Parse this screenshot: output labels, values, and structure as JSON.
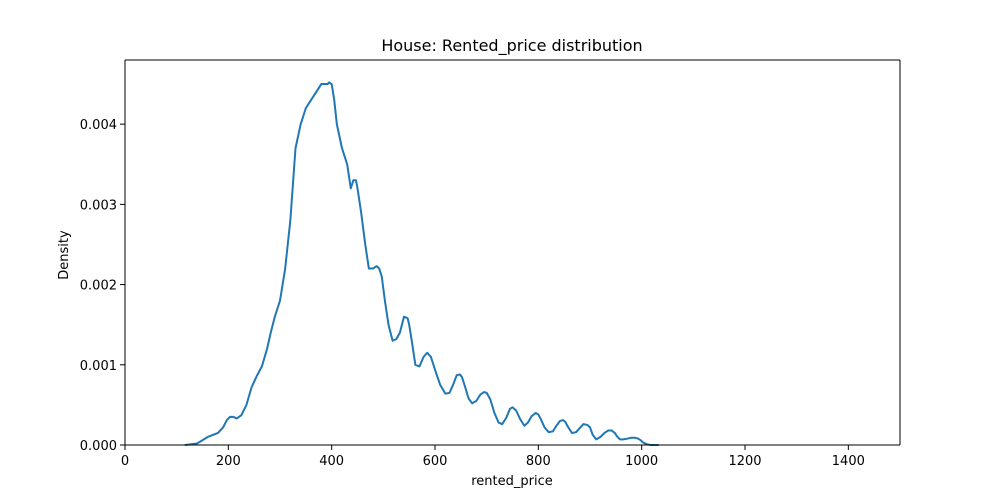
{
  "chart_data": {
    "type": "line",
    "title": "House: Rented_price distribution",
    "xlabel": "rented_price",
    "ylabel": "Density",
    "xlim": [
      0,
      1500
    ],
    "ylim": [
      0,
      0.0048
    ],
    "x_ticks": [
      0,
      200,
      400,
      600,
      800,
      1000,
      1200,
      1400
    ],
    "x_tick_labels": [
      "0",
      "200",
      "400",
      "600",
      "800",
      "1000",
      "1200",
      "1400"
    ],
    "y_ticks": [
      0.0,
      0.001,
      0.002,
      0.003,
      0.004
    ],
    "y_tick_labels": [
      "0.000",
      "0.001",
      "0.002",
      "0.003",
      "0.004"
    ],
    "grid": false,
    "legend": "none",
    "series": [
      {
        "color": "#1f77b4",
        "x": [
          117,
          140,
          160,
          180,
          190,
          197,
          203,
          210,
          216,
          225,
          235,
          245,
          255,
          265,
          275,
          282,
          290,
          300,
          310,
          320,
          330,
          340,
          350,
          360,
          370,
          380,
          387,
          392,
          395,
          400,
          405,
          410,
          420,
          430,
          437,
          442,
          447,
          450,
          457,
          465,
          472,
          480,
          487,
          492,
          497,
          503,
          510,
          518,
          525,
          532,
          540,
          547,
          550,
          555,
          562,
          570,
          578,
          585,
          592,
          597,
          602,
          610,
          620,
          628,
          635,
          642,
          648,
          652,
          658,
          665,
          672,
          680,
          688,
          695,
          700,
          707,
          715,
          723,
          730,
          738,
          745,
          750,
          757,
          765,
          773,
          780,
          787,
          795,
          800,
          805,
          812,
          820,
          828,
          835,
          842,
          848,
          852,
          858,
          865,
          873,
          880,
          887,
          895,
          900,
          905,
          912,
          920,
          928,
          935,
          942,
          948,
          952,
          958,
          965,
          973,
          980,
          987,
          993,
          998,
          1003,
          1010,
          1017,
          1025,
          1032
        ],
        "y": [
          0.0,
          2e-05,
          0.0001,
          0.00015,
          0.00022,
          0.00031,
          0.00035,
          0.00035,
          0.00033,
          0.00037,
          0.0005,
          0.00072,
          0.00086,
          0.00098,
          0.0012,
          0.0014,
          0.0016,
          0.0018,
          0.0022,
          0.0028,
          0.0037,
          0.004,
          0.0042,
          0.0043,
          0.0044,
          0.0045,
          0.0045,
          0.0045,
          0.00452,
          0.0045,
          0.0043,
          0.004,
          0.0037,
          0.0035,
          0.0032,
          0.0033,
          0.0033,
          0.0032,
          0.0029,
          0.0025,
          0.0022,
          0.0022,
          0.00223,
          0.0022,
          0.0021,
          0.0018,
          0.0015,
          0.0013,
          0.00132,
          0.0014,
          0.0016,
          0.00158,
          0.0015,
          0.0013,
          0.001,
          0.00098,
          0.0011,
          0.00115,
          0.0011,
          0.001,
          0.0009,
          0.00075,
          0.00064,
          0.00065,
          0.00075,
          0.00087,
          0.00088,
          0.00085,
          0.00073,
          0.00058,
          0.00052,
          0.00055,
          0.00063,
          0.00066,
          0.00065,
          0.00057,
          0.0004,
          0.00028,
          0.00026,
          0.00034,
          0.00045,
          0.00047,
          0.00043,
          0.00032,
          0.00024,
          0.00028,
          0.00036,
          0.0004,
          0.00038,
          0.00032,
          0.00022,
          0.00016,
          0.00017,
          0.00024,
          0.0003,
          0.00031,
          0.00029,
          0.00022,
          0.00015,
          0.00016,
          0.00021,
          0.00026,
          0.00025,
          0.00022,
          0.00013,
          7e-05,
          0.0001,
          0.00015,
          0.00018,
          0.00018,
          0.00015,
          0.00011,
          7e-05,
          7e-05,
          8e-05,
          9e-05,
          9e-05,
          8e-05,
          6e-05,
          3e-05,
          1e-05,
          0.0,
          0.0,
          0.0
        ]
      }
    ]
  }
}
